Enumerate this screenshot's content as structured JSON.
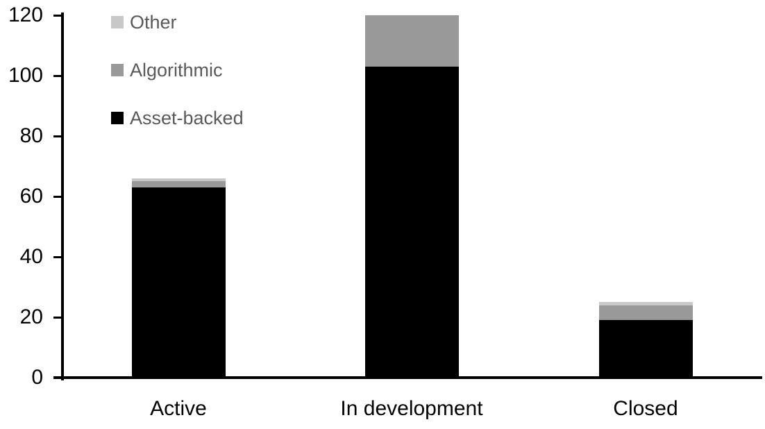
{
  "chart_data": {
    "type": "bar",
    "stacked": true,
    "title": "",
    "xlabel": "",
    "ylabel": "",
    "categories": [
      "Active",
      "In development",
      "Closed"
    ],
    "series": [
      {
        "name": "Asset-backed",
        "color": "#000000",
        "values": [
          63,
          103,
          19
        ]
      },
      {
        "name": "Algorithmic",
        "color": "#999999",
        "values": [
          2,
          17,
          5
        ]
      },
      {
        "name": "Other",
        "color": "#c8c8c8",
        "values": [
          1,
          0,
          1
        ]
      }
    ],
    "totals": [
      66,
      120,
      25
    ],
    "ylim": [
      0,
      120
    ],
    "yticks": [
      0,
      20,
      40,
      60,
      80,
      100,
      120
    ],
    "grid": false,
    "legend_position": "top-left",
    "legend_order": [
      "Other",
      "Algorithmic",
      "Asset-backed"
    ],
    "legend_text_color": "#595959",
    "axis_color": "#000000"
  }
}
